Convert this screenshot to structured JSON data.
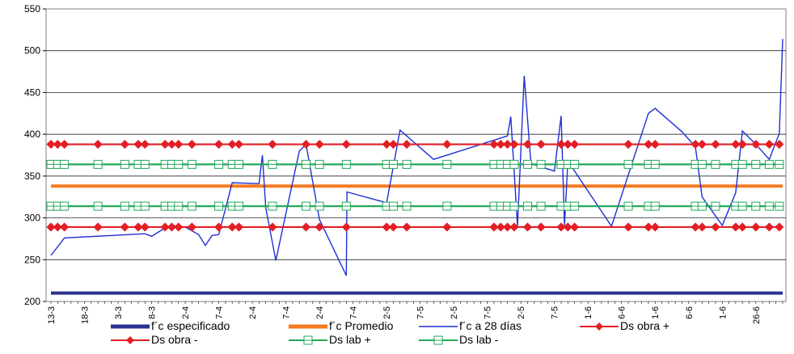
{
  "chart_data": {
    "type": "line",
    "title": "",
    "xlabel": "",
    "ylabel": "",
    "ylim": [
      200,
      550
    ],
    "yticks": [
      200,
      250,
      300,
      350,
      400,
      450,
      500,
      550
    ],
    "grid": "horizontal",
    "legend_position": "bottom",
    "x_count": 100,
    "xtick_labels": [
      {
        "i": 0,
        "label": "13-3"
      },
      {
        "i": 5,
        "label": "18-3"
      },
      {
        "i": 10,
        "label": "3-3"
      },
      {
        "i": 15,
        "label": "8-3"
      },
      {
        "i": 20,
        "label": "2-4"
      },
      {
        "i": 25,
        "label": "7-4"
      },
      {
        "i": 30,
        "label": "2-4"
      },
      {
        "i": 35,
        "label": "7-4"
      },
      {
        "i": 40,
        "label": "2-4"
      },
      {
        "i": 45,
        "label": "7-4"
      },
      {
        "i": 50,
        "label": "2-5"
      },
      {
        "i": 55,
        "label": "7-5"
      },
      {
        "i": 60,
        "label": "2-5"
      },
      {
        "i": 65,
        "label": "7-5"
      },
      {
        "i": 70,
        "label": "2-5"
      },
      {
        "i": 75,
        "label": "7-5"
      },
      {
        "i": 80,
        "label": "1-6"
      },
      {
        "i": 85,
        "label": "6-6"
      },
      {
        "i": 90,
        "label": "1-6"
      },
      {
        "i": 95,
        "label": "6-6"
      },
      {
        "i": 100,
        "label": "1-6"
      },
      {
        "i": 105,
        "label": "26-6"
      }
    ],
    "x_index_max": 109,
    "series": [
      {
        "name": "f´c especificado",
        "color": "#2E3192",
        "style": "thick",
        "values": [
          [
            0,
            210
          ],
          [
            109,
            210
          ]
        ]
      },
      {
        "name": "f´c Promedio",
        "color": "#F47B20",
        "style": "thick",
        "values": [
          [
            0,
            338
          ],
          [
            109,
            338
          ]
        ]
      },
      {
        "name": "f´c a 28 días",
        "color": "#1F2FD6",
        "style": "thin",
        "values": [
          [
            0,
            255
          ],
          [
            2,
            276
          ],
          [
            14,
            281
          ],
          [
            15,
            278
          ],
          [
            17,
            288
          ],
          [
            18,
            291
          ],
          [
            20,
            289
          ],
          [
            22,
            280
          ],
          [
            23,
            267
          ],
          [
            24,
            279
          ],
          [
            25,
            280
          ],
          [
            27,
            342
          ],
          [
            31,
            341
          ],
          [
            31.5,
            375
          ],
          [
            32,
            312
          ],
          [
            33.5,
            249
          ],
          [
            37,
            380
          ],
          [
            38,
            388
          ],
          [
            40,
            298
          ],
          [
            44,
            231
          ],
          [
            44.1,
            331
          ],
          [
            50,
            318
          ],
          [
            52,
            405
          ],
          [
            57,
            370
          ],
          [
            68,
            398
          ],
          [
            68.5,
            421
          ],
          [
            69.5,
            290
          ],
          [
            70.5,
            470
          ],
          [
            71.5,
            365
          ],
          [
            75,
            356
          ],
          [
            76,
            422
          ],
          [
            76.5,
            291
          ],
          [
            77,
            368
          ],
          [
            83.5,
            290
          ],
          [
            89,
            425
          ],
          [
            90,
            431
          ],
          [
            94,
            403
          ],
          [
            96,
            385
          ],
          [
            97,
            325
          ],
          [
            100,
            291
          ],
          [
            102,
            330
          ],
          [
            103,
            404
          ],
          [
            105,
            388
          ],
          [
            107,
            370
          ],
          [
            108.5,
            401
          ],
          [
            109,
            514
          ]
        ]
      },
      {
        "name": "Ds obra +",
        "color": "#E31E24",
        "marker": "diamond",
        "y": 388,
        "x_points": [
          0,
          1,
          2,
          7,
          11,
          13,
          14,
          17,
          18,
          19,
          21,
          25,
          27,
          28,
          33,
          38,
          40,
          44,
          50,
          51,
          53,
          59,
          66,
          67,
          68,
          69,
          71,
          73,
          76,
          77,
          78,
          86,
          89,
          90,
          96,
          97,
          99,
          102,
          103,
          105,
          107,
          108.5
        ]
      },
      {
        "name": "Ds obra -",
        "color": "#E31E24",
        "marker": "diamond",
        "y": 289,
        "x_points": [
          0,
          1,
          2,
          7,
          11,
          13,
          14,
          17,
          18,
          19,
          21,
          25,
          27,
          28,
          33,
          38,
          40,
          44,
          50,
          51,
          53,
          59,
          66,
          67,
          68,
          69,
          71,
          73,
          76,
          77,
          78,
          86,
          89,
          90,
          96,
          97,
          99,
          102,
          103,
          105,
          107,
          108.5
        ]
      },
      {
        "name": "Ds lab +",
        "color": "#24A85A",
        "marker": "square",
        "y": 364,
        "x_points": [
          0,
          1,
          2,
          7,
          11,
          13,
          14,
          17,
          18,
          19,
          21,
          25,
          27,
          28,
          33,
          38,
          40,
          44,
          50,
          51,
          53,
          59,
          66,
          67,
          68,
          69,
          71,
          73,
          76,
          77,
          78,
          86,
          89,
          90,
          96,
          97,
          99,
          102,
          103,
          105,
          107,
          108.5
        ]
      },
      {
        "name": "Ds lab -",
        "color": "#24A85A",
        "marker": "square",
        "y": 314,
        "x_points": [
          0,
          1,
          2,
          7,
          11,
          13,
          14,
          17,
          18,
          19,
          21,
          25,
          27,
          28,
          33,
          38,
          40,
          44,
          50,
          51,
          53,
          59,
          66,
          67,
          68,
          69,
          71,
          73,
          76,
          77,
          78,
          86,
          89,
          90,
          96,
          97,
          99,
          102,
          103,
          105,
          107,
          108.5
        ]
      }
    ],
    "legend": {
      "row1": [
        "f´c especificado",
        "f´c Promedio",
        "f´c a 28 días",
        "Ds obra +"
      ],
      "row2": [
        "Ds obra -",
        "Ds lab +",
        "Ds lab -"
      ]
    }
  }
}
